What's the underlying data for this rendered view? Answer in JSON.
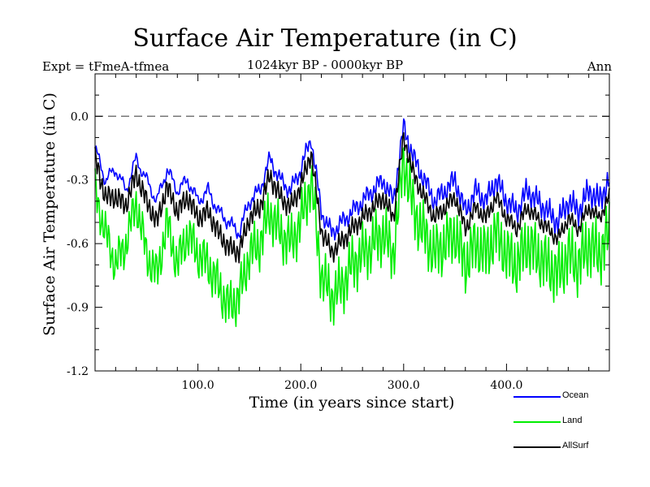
{
  "chart_data": {
    "type": "line",
    "title": "Surface Air Temperature (in C)",
    "subtitle": "1024kyr BP - 0000kyr BP",
    "experiment": "Expt = tFmeA-tfmea",
    "season": "Ann",
    "xlabel": "Time (in years since start)",
    "ylabel": "Surface Air Temperature (in C)",
    "xlim": [
      0,
      500
    ],
    "ylim": [
      -1.2,
      0.2
    ],
    "x_ticks": [
      100,
      200,
      300,
      400
    ],
    "x_tick_labels": [
      "100.0",
      "200.0",
      "300.0",
      "400.0"
    ],
    "y_ticks": [
      0.0,
      -0.3,
      -0.6,
      -0.9,
      -1.2
    ],
    "y_tick_labels": [
      "0.0",
      "-0.3",
      "-0.6",
      "-0.9",
      "-1.2"
    ],
    "reference_line": 0.0,
    "legend_position": "bottom-right",
    "series": [
      {
        "name": "Ocean",
        "color": "#0000ff",
        "x": [
          0,
          10,
          20,
          30,
          40,
          50,
          60,
          70,
          80,
          90,
          100,
          110,
          120,
          130,
          140,
          150,
          160,
          170,
          180,
          190,
          200,
          210,
          220,
          230,
          240,
          250,
          260,
          270,
          280,
          290,
          300,
          310,
          320,
          330,
          340,
          350,
          360,
          370,
          380,
          390,
          400,
          410,
          420,
          430,
          440,
          450,
          460,
          470,
          480,
          490,
          500
        ],
        "values": [
          -0.15,
          -0.3,
          -0.25,
          -0.35,
          -0.2,
          -0.3,
          -0.4,
          -0.25,
          -0.35,
          -0.3,
          -0.4,
          -0.35,
          -0.45,
          -0.5,
          -0.55,
          -0.4,
          -0.35,
          -0.2,
          -0.3,
          -0.35,
          -0.25,
          -0.1,
          -0.45,
          -0.55,
          -0.5,
          -0.45,
          -0.4,
          -0.35,
          -0.3,
          -0.4,
          -0.05,
          -0.2,
          -0.3,
          -0.4,
          -0.35,
          -0.3,
          -0.45,
          -0.35,
          -0.4,
          -0.3,
          -0.4,
          -0.45,
          -0.35,
          -0.4,
          -0.45,
          -0.5,
          -0.4,
          -0.45,
          -0.35,
          -0.4,
          -0.3
        ]
      },
      {
        "name": "Land",
        "color": "#00ee00",
        "x": [
          0,
          10,
          20,
          30,
          40,
          50,
          60,
          70,
          80,
          90,
          100,
          110,
          120,
          130,
          140,
          150,
          160,
          170,
          180,
          190,
          200,
          210,
          220,
          230,
          240,
          250,
          260,
          270,
          280,
          290,
          300,
          310,
          320,
          330,
          340,
          350,
          360,
          370,
          380,
          390,
          400,
          410,
          420,
          430,
          440,
          450,
          460,
          470,
          480,
          490,
          500
        ],
        "values": [
          -0.35,
          -0.55,
          -0.7,
          -0.6,
          -0.4,
          -0.65,
          -0.75,
          -0.5,
          -0.7,
          -0.55,
          -0.65,
          -0.7,
          -0.8,
          -0.9,
          -0.85,
          -0.65,
          -0.6,
          -0.45,
          -0.55,
          -0.6,
          -0.5,
          -0.3,
          -0.75,
          -0.85,
          -0.8,
          -0.7,
          -0.65,
          -0.6,
          -0.55,
          -0.65,
          -0.2,
          -0.45,
          -0.55,
          -0.65,
          -0.6,
          -0.55,
          -0.7,
          -0.6,
          -0.65,
          -0.55,
          -0.65,
          -0.7,
          -0.6,
          -0.65,
          -0.7,
          -0.75,
          -0.65,
          -0.7,
          -0.6,
          -0.65,
          -0.55
        ]
      },
      {
        "name": "AllSurf",
        "color": "#000000",
        "x": [
          0,
          10,
          20,
          30,
          40,
          50,
          60,
          70,
          80,
          90,
          100,
          110,
          120,
          130,
          140,
          150,
          160,
          170,
          180,
          190,
          200,
          210,
          220,
          230,
          240,
          250,
          260,
          270,
          280,
          290,
          300,
          310,
          320,
          330,
          340,
          350,
          360,
          370,
          380,
          390,
          400,
          410,
          420,
          430,
          440,
          450,
          460,
          470,
          480,
          490,
          500
        ],
        "values": [
          -0.2,
          -0.38,
          -0.38,
          -0.42,
          -0.27,
          -0.4,
          -0.5,
          -0.33,
          -0.45,
          -0.38,
          -0.48,
          -0.45,
          -0.55,
          -0.62,
          -0.64,
          -0.48,
          -0.43,
          -0.28,
          -0.38,
          -0.43,
          -0.33,
          -0.17,
          -0.54,
          -0.64,
          -0.59,
          -0.53,
          -0.48,
          -0.43,
          -0.38,
          -0.48,
          -0.1,
          -0.28,
          -0.38,
          -0.48,
          -0.43,
          -0.38,
          -0.53,
          -0.43,
          -0.48,
          -0.38,
          -0.48,
          -0.53,
          -0.43,
          -0.48,
          -0.53,
          -0.58,
          -0.48,
          -0.53,
          -0.43,
          -0.48,
          -0.38
        ]
      }
    ]
  }
}
